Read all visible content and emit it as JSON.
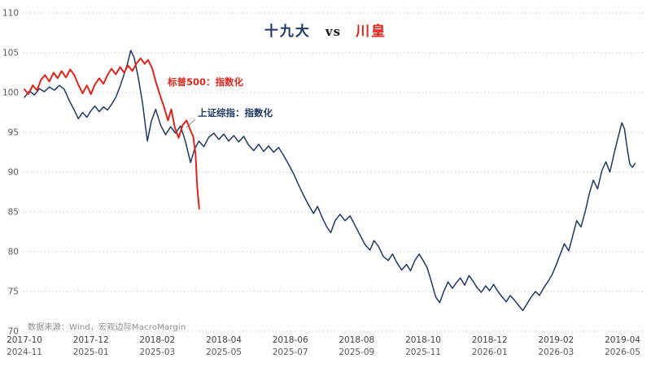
{
  "title": {
    "left": "十九大",
    "mid": "vs",
    "right": "川皇"
  },
  "source": "数据来源：Wind，宏观边际MacroMargin",
  "colors": {
    "navy": "#1f3864",
    "red": "#e0251b",
    "grid": "#c9c9c9",
    "y_tick": "#595959",
    "x_top": "#3f3f3f",
    "source_text": "#8c8c8c"
  },
  "chart_data": {
    "type": "line",
    "title": "十九大 vs 川皇",
    "ylim": [
      70,
      110
    ],
    "yticks": [
      70,
      75,
      80,
      85,
      90,
      95,
      100,
      105,
      110
    ],
    "months_per_label": 2,
    "grid": "dotted-horizontal",
    "x_top_labels": [
      "2017-10",
      "2017-12",
      "2018-02",
      "2018-04",
      "2018-06",
      "2018-08",
      "2018-10",
      "2018-12",
      "2019-02",
      "2019-04"
    ],
    "x_bottom_labels": [
      "2024-11",
      "2025-01",
      "2025-03",
      "2025-05",
      "2025-07",
      "2025-09",
      "2025-11",
      "2026-01",
      "2026-03",
      "2026-05"
    ],
    "series": [
      {
        "name": "上证综指：指数化",
        "color": "#1f3864",
        "width": 1.5,
        "points": [
          [
            0,
            99.4
          ],
          [
            0.15,
            100.2
          ],
          [
            0.3,
            99.7
          ],
          [
            0.45,
            100.5
          ],
          [
            0.6,
            100.1
          ],
          [
            0.75,
            100.7
          ],
          [
            0.9,
            100.3
          ],
          [
            1.05,
            100.9
          ],
          [
            1.2,
            100.4
          ],
          [
            1.35,
            99.0
          ],
          [
            1.5,
            97.8
          ],
          [
            1.62,
            96.7
          ],
          [
            1.75,
            97.5
          ],
          [
            1.88,
            96.9
          ],
          [
            2.0,
            97.7
          ],
          [
            2.12,
            98.3
          ],
          [
            2.25,
            97.6
          ],
          [
            2.38,
            98.2
          ],
          [
            2.5,
            97.8
          ],
          [
            2.62,
            98.5
          ],
          [
            2.75,
            99.4
          ],
          [
            2.88,
            100.8
          ],
          [
            3.0,
            102.3
          ],
          [
            3.1,
            103.6
          ],
          [
            3.2,
            105.3
          ],
          [
            3.3,
            104.4
          ],
          [
            3.42,
            102.0
          ],
          [
            3.55,
            98.8
          ],
          [
            3.7,
            93.9
          ],
          [
            3.82,
            96.4
          ],
          [
            3.95,
            97.9
          ],
          [
            4.1,
            95.9
          ],
          [
            4.25,
            94.7
          ],
          [
            4.4,
            95.7
          ],
          [
            4.55,
            94.9
          ],
          [
            4.7,
            95.8
          ],
          [
            4.85,
            93.8
          ],
          [
            5.0,
            91.2
          ],
          [
            5.12,
            92.9
          ],
          [
            5.25,
            93.9
          ],
          [
            5.4,
            93.2
          ],
          [
            5.55,
            94.4
          ],
          [
            5.7,
            94.9
          ],
          [
            5.85,
            94.1
          ],
          [
            6.0,
            94.8
          ],
          [
            6.15,
            93.9
          ],
          [
            6.3,
            94.6
          ],
          [
            6.45,
            93.8
          ],
          [
            6.6,
            94.5
          ],
          [
            6.75,
            93.4
          ],
          [
            6.9,
            92.7
          ],
          [
            7.05,
            93.5
          ],
          [
            7.2,
            92.6
          ],
          [
            7.35,
            93.3
          ],
          [
            7.5,
            92.5
          ],
          [
            7.65,
            93.1
          ],
          [
            7.8,
            92.1
          ],
          [
            7.95,
            91.0
          ],
          [
            8.1,
            89.8
          ],
          [
            8.25,
            88.4
          ],
          [
            8.4,
            87.1
          ],
          [
            8.55,
            85.9
          ],
          [
            8.7,
            84.8
          ],
          [
            8.82,
            85.7
          ],
          [
            8.95,
            84.4
          ],
          [
            9.1,
            83.1
          ],
          [
            9.22,
            82.4
          ],
          [
            9.35,
            83.9
          ],
          [
            9.5,
            84.7
          ],
          [
            9.65,
            83.9
          ],
          [
            9.8,
            84.5
          ],
          [
            9.95,
            83.3
          ],
          [
            10.1,
            82.1
          ],
          [
            10.25,
            80.9
          ],
          [
            10.4,
            80.2
          ],
          [
            10.52,
            81.4
          ],
          [
            10.65,
            80.7
          ],
          [
            10.8,
            79.4
          ],
          [
            10.95,
            78.9
          ],
          [
            11.08,
            79.7
          ],
          [
            11.2,
            78.7
          ],
          [
            11.35,
            77.7
          ],
          [
            11.5,
            78.4
          ],
          [
            11.62,
            77.6
          ],
          [
            11.75,
            78.9
          ],
          [
            11.88,
            79.7
          ],
          [
            12.0,
            78.9
          ],
          [
            12.12,
            78.0
          ],
          [
            12.25,
            76.2
          ],
          [
            12.38,
            74.3
          ],
          [
            12.5,
            73.6
          ],
          [
            12.62,
            75.0
          ],
          [
            12.75,
            76.2
          ],
          [
            12.88,
            75.4
          ],
          [
            13.0,
            76.1
          ],
          [
            13.12,
            76.7
          ],
          [
            13.25,
            75.8
          ],
          [
            13.38,
            77.0
          ],
          [
            13.5,
            76.3
          ],
          [
            13.62,
            75.5
          ],
          [
            13.75,
            74.9
          ],
          [
            13.88,
            75.7
          ],
          [
            14.0,
            75.1
          ],
          [
            14.12,
            75.9
          ],
          [
            14.25,
            75.0
          ],
          [
            14.38,
            74.3
          ],
          [
            14.5,
            73.7
          ],
          [
            14.62,
            74.5
          ],
          [
            14.75,
            73.9
          ],
          [
            14.88,
            73.2
          ],
          [
            15.0,
            72.6
          ],
          [
            15.12,
            73.4
          ],
          [
            15.25,
            74.3
          ],
          [
            15.38,
            75.0
          ],
          [
            15.5,
            74.5
          ],
          [
            15.62,
            75.4
          ],
          [
            15.75,
            76.2
          ],
          [
            15.88,
            77.1
          ],
          [
            16.0,
            78.3
          ],
          [
            16.12,
            79.6
          ],
          [
            16.25,
            81.0
          ],
          [
            16.38,
            80.1
          ],
          [
            16.5,
            82.0
          ],
          [
            16.62,
            83.9
          ],
          [
            16.75,
            83.1
          ],
          [
            16.88,
            85.1
          ],
          [
            17.0,
            87.3
          ],
          [
            17.12,
            89.0
          ],
          [
            17.25,
            87.9
          ],
          [
            17.38,
            90.2
          ],
          [
            17.5,
            91.3
          ],
          [
            17.62,
            90.0
          ],
          [
            17.75,
            92.4
          ],
          [
            17.88,
            94.6
          ],
          [
            17.98,
            96.2
          ],
          [
            18.06,
            95.4
          ],
          [
            18.14,
            93.0
          ],
          [
            18.22,
            91.0
          ],
          [
            18.3,
            90.6
          ],
          [
            18.38,
            91.1
          ]
        ]
      },
      {
        "name": "标普500：指数化",
        "color": "#e0251b",
        "width": 2,
        "points": [
          [
            0,
            100.4
          ],
          [
            0.12,
            99.8
          ],
          [
            0.25,
            100.9
          ],
          [
            0.38,
            100.3
          ],
          [
            0.5,
            101.6
          ],
          [
            0.62,
            102.2
          ],
          [
            0.75,
            101.4
          ],
          [
            0.88,
            102.5
          ],
          [
            1.0,
            101.8
          ],
          [
            1.12,
            102.7
          ],
          [
            1.25,
            101.9
          ],
          [
            1.38,
            102.9
          ],
          [
            1.5,
            102.2
          ],
          [
            1.62,
            101.0
          ],
          [
            1.75,
            99.9
          ],
          [
            1.88,
            100.9
          ],
          [
            2.0,
            99.8
          ],
          [
            2.12,
            101.0
          ],
          [
            2.25,
            101.8
          ],
          [
            2.38,
            101.1
          ],
          [
            2.5,
            102.2
          ],
          [
            2.62,
            103.0
          ],
          [
            2.75,
            102.3
          ],
          [
            2.88,
            103.2
          ],
          [
            3.0,
            102.5
          ],
          [
            3.12,
            103.4
          ],
          [
            3.25,
            102.7
          ],
          [
            3.38,
            103.7
          ],
          [
            3.5,
            104.3
          ],
          [
            3.62,
            103.6
          ],
          [
            3.72,
            104.1
          ],
          [
            3.85,
            103.0
          ],
          [
            3.95,
            101.4
          ],
          [
            4.08,
            99.7
          ],
          [
            4.2,
            98.2
          ],
          [
            4.32,
            96.5
          ],
          [
            4.42,
            97.9
          ],
          [
            4.52,
            95.7
          ],
          [
            4.64,
            94.3
          ],
          [
            4.76,
            95.9
          ],
          [
            4.88,
            96.5
          ],
          [
            5.0,
            95.2
          ],
          [
            5.08,
            94.5
          ],
          [
            5.15,
            92.3
          ],
          [
            5.2,
            88.2
          ],
          [
            5.26,
            85.4
          ]
        ]
      }
    ],
    "annotations": [
      {
        "series": 1,
        "x": 206,
        "y": 105,
        "leader": null
      },
      {
        "series": 0,
        "x": 243,
        "y": 143,
        "leader": [
          240,
          147,
          229,
          157
        ]
      }
    ]
  }
}
